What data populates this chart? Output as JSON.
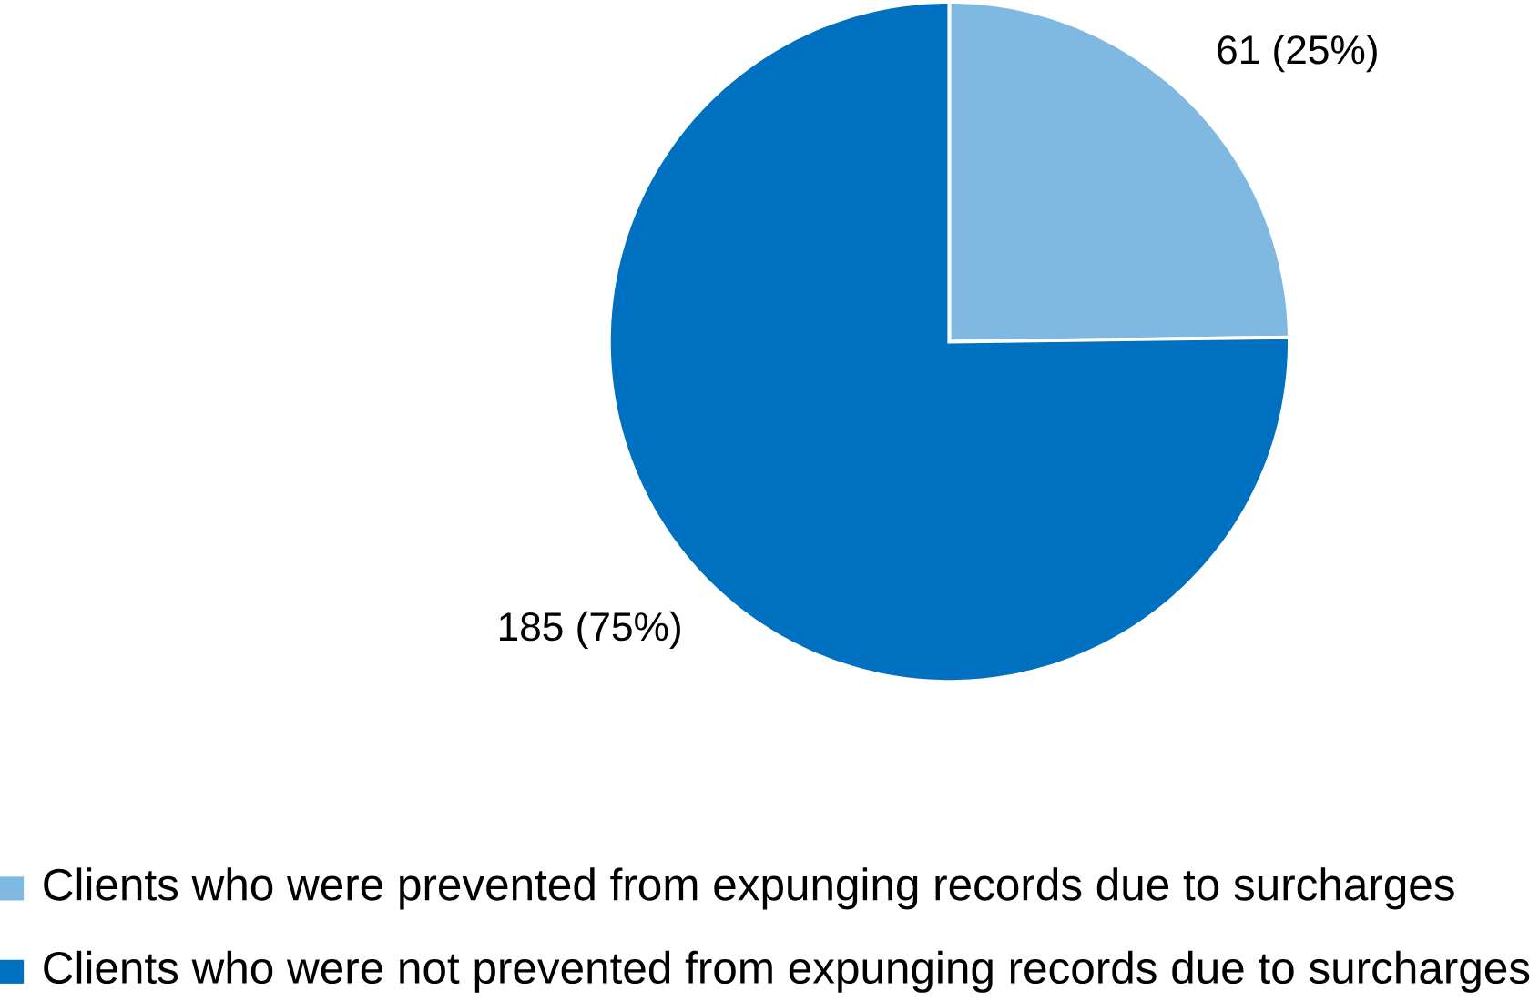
{
  "chart_data": {
    "type": "pie",
    "categories": [
      "Clients who were prevented from expunging records due to surcharges",
      "Clients who were not prevented from expunging records due to surcharges"
    ],
    "values": [
      61,
      185
    ],
    "value_labels": [
      "61 (25%)",
      "185 (75%)"
    ],
    "colors": [
      "#7fb8e0",
      "#0070c0"
    ],
    "legend": "bottom"
  }
}
